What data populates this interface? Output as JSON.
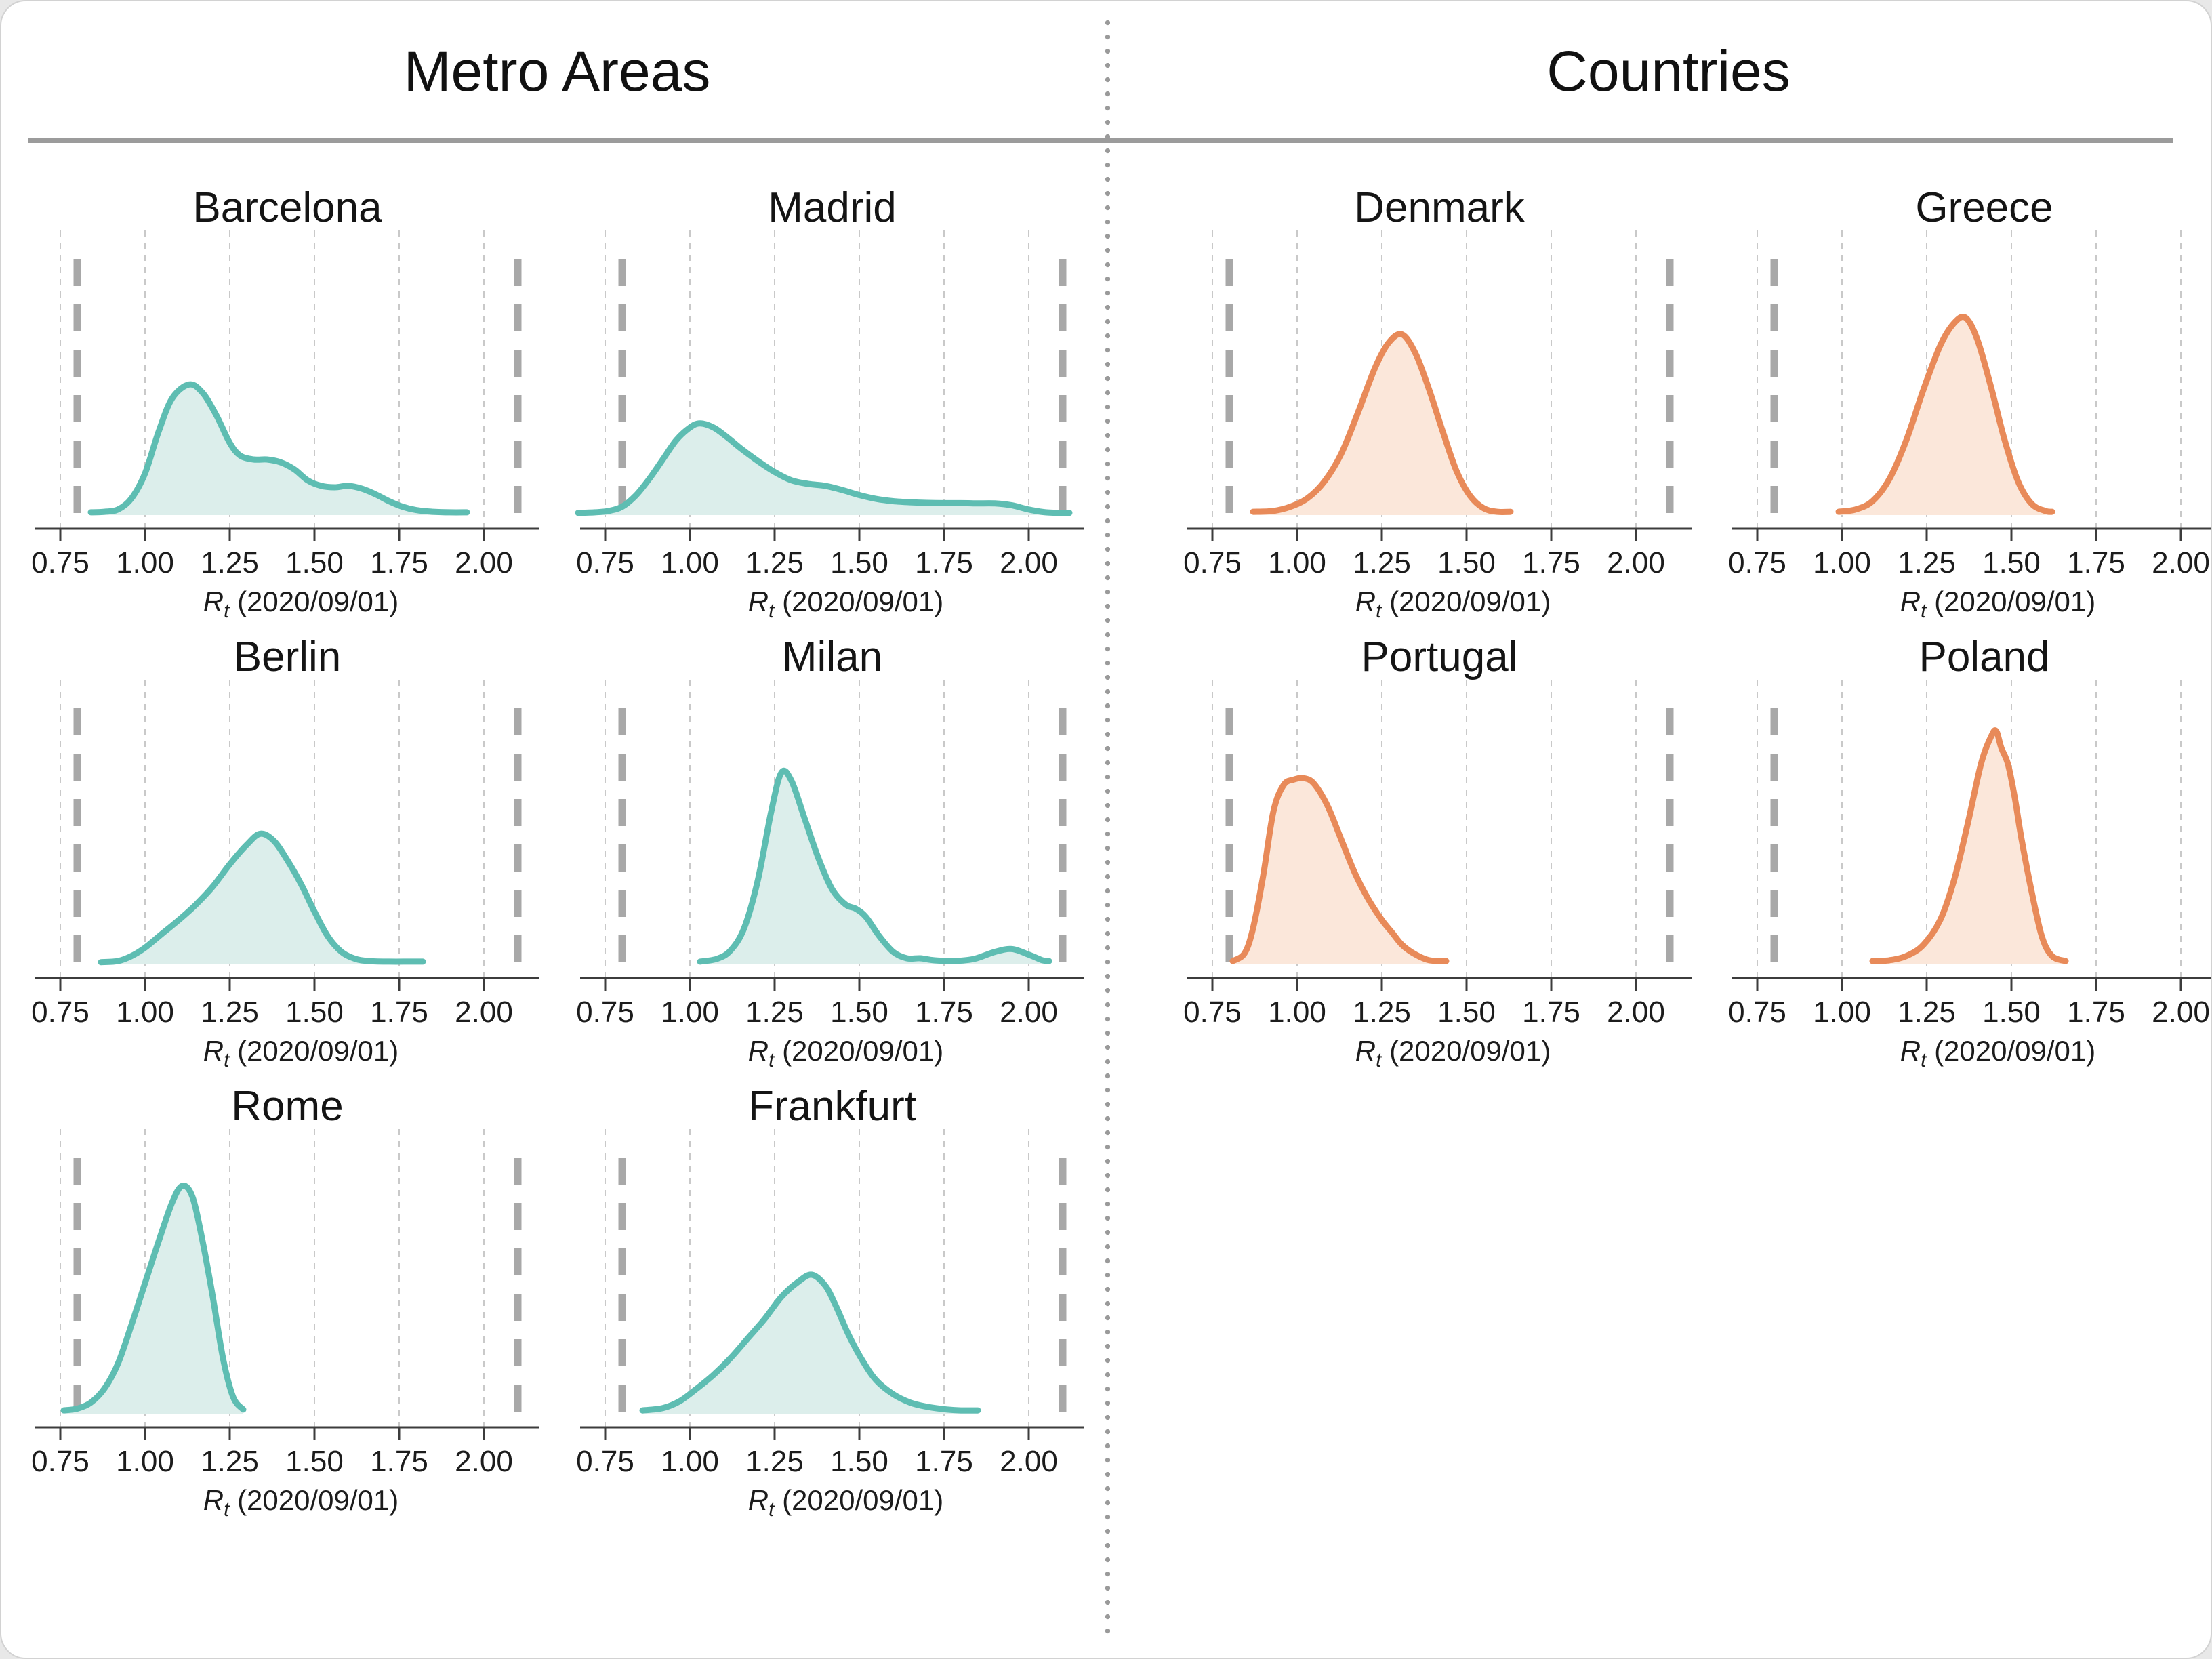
{
  "page": {
    "left_title": "Metro Areas",
    "right_title": "Countries"
  },
  "colors": {
    "metro_stroke": "#5EBDB2",
    "metro_fill": "#DCEEEB",
    "country_stroke": "#E88A59",
    "country_fill": "#FBE7DA",
    "gridline": "#C9C9C9",
    "bound_dash": "#A8A8A8",
    "axis_line": "#3C3C3C",
    "header_rule": "#9B9B9B",
    "text": "#1C1C1C"
  },
  "axis": {
    "xlabel_r": "R",
    "xlabel_sub": "t",
    "xlabel_rest": " (2020/09/01)",
    "tick_labels": [
      "0.75",
      "1.00",
      "1.25",
      "1.50",
      "1.75",
      "2.00"
    ],
    "tick_values": [
      0.75,
      1.0,
      1.25,
      1.5,
      1.75,
      2.0
    ],
    "dashed_bounds": [
      0.8,
      2.1
    ],
    "xlim": [
      0.72,
      2.14
    ]
  },
  "chart_data": [
    {
      "type": "area",
      "panel": "metro",
      "title": "Barcelona",
      "xlabel": "R_t (2020/09/01)",
      "xlim": [
        0.72,
        2.14
      ],
      "points": [
        [
          0.84,
          0.01
        ],
        [
          0.88,
          0.012
        ],
        [
          0.92,
          0.02
        ],
        [
          0.96,
          0.06
        ],
        [
          1.0,
          0.15
        ],
        [
          1.04,
          0.3
        ],
        [
          1.08,
          0.42
        ],
        [
          1.13,
          0.47
        ],
        [
          1.17,
          0.44
        ],
        [
          1.21,
          0.36
        ],
        [
          1.25,
          0.26
        ],
        [
          1.28,
          0.215
        ],
        [
          1.32,
          0.2
        ],
        [
          1.36,
          0.2
        ],
        [
          1.4,
          0.19
        ],
        [
          1.44,
          0.165
        ],
        [
          1.48,
          0.125
        ],
        [
          1.52,
          0.105
        ],
        [
          1.56,
          0.1
        ],
        [
          1.6,
          0.105
        ],
        [
          1.64,
          0.095
        ],
        [
          1.68,
          0.075
        ],
        [
          1.72,
          0.05
        ],
        [
          1.76,
          0.03
        ],
        [
          1.8,
          0.018
        ],
        [
          1.85,
          0.012
        ],
        [
          1.9,
          0.01
        ],
        [
          1.95,
          0.01
        ]
      ]
    },
    {
      "type": "area",
      "panel": "metro",
      "title": "Madrid",
      "xlabel": "R_t (2020/09/01)",
      "xlim": [
        0.72,
        2.14
      ],
      "points": [
        [
          0.67,
          0.008
        ],
        [
          0.72,
          0.01
        ],
        [
          0.76,
          0.015
        ],
        [
          0.8,
          0.03
        ],
        [
          0.84,
          0.07
        ],
        [
          0.88,
          0.13
        ],
        [
          0.92,
          0.2
        ],
        [
          0.96,
          0.27
        ],
        [
          1.0,
          0.315
        ],
        [
          1.03,
          0.33
        ],
        [
          1.07,
          0.315
        ],
        [
          1.11,
          0.28
        ],
        [
          1.15,
          0.24
        ],
        [
          1.2,
          0.195
        ],
        [
          1.25,
          0.155
        ],
        [
          1.3,
          0.125
        ],
        [
          1.35,
          0.112
        ],
        [
          1.4,
          0.105
        ],
        [
          1.45,
          0.09
        ],
        [
          1.5,
          0.072
        ],
        [
          1.55,
          0.058
        ],
        [
          1.6,
          0.05
        ],
        [
          1.65,
          0.046
        ],
        [
          1.7,
          0.044
        ],
        [
          1.75,
          0.043
        ],
        [
          1.8,
          0.043
        ],
        [
          1.85,
          0.042
        ],
        [
          1.9,
          0.042
        ],
        [
          1.95,
          0.035
        ],
        [
          2.0,
          0.02
        ],
        [
          2.05,
          0.01
        ],
        [
          2.1,
          0.008
        ],
        [
          2.12,
          0.008
        ]
      ]
    },
    {
      "type": "area",
      "panel": "metro",
      "title": "Berlin",
      "xlabel": "R_t (2020/09/01)",
      "xlim": [
        0.72,
        2.14
      ],
      "points": [
        [
          0.87,
          0.008
        ],
        [
          0.92,
          0.012
        ],
        [
          0.96,
          0.03
        ],
        [
          1.0,
          0.06
        ],
        [
          1.05,
          0.11
        ],
        [
          1.1,
          0.16
        ],
        [
          1.15,
          0.215
        ],
        [
          1.2,
          0.28
        ],
        [
          1.25,
          0.36
        ],
        [
          1.3,
          0.43
        ],
        [
          1.34,
          0.47
        ],
        [
          1.38,
          0.445
        ],
        [
          1.42,
          0.375
        ],
        [
          1.46,
          0.29
        ],
        [
          1.5,
          0.19
        ],
        [
          1.54,
          0.1
        ],
        [
          1.58,
          0.045
        ],
        [
          1.62,
          0.02
        ],
        [
          1.66,
          0.012
        ],
        [
          1.72,
          0.01
        ],
        [
          1.78,
          0.01
        ],
        [
          1.82,
          0.01
        ]
      ]
    },
    {
      "type": "area",
      "panel": "metro",
      "title": "Milan",
      "xlabel": "R_t (2020/09/01)",
      "xlim": [
        0.72,
        2.14
      ],
      "points": [
        [
          1.03,
          0.01
        ],
        [
          1.08,
          0.02
        ],
        [
          1.12,
          0.05
        ],
        [
          1.16,
          0.13
        ],
        [
          1.2,
          0.3
        ],
        [
          1.24,
          0.55
        ],
        [
          1.27,
          0.69
        ],
        [
          1.3,
          0.66
        ],
        [
          1.34,
          0.52
        ],
        [
          1.38,
          0.38
        ],
        [
          1.42,
          0.27
        ],
        [
          1.46,
          0.215
        ],
        [
          1.49,
          0.2
        ],
        [
          1.52,
          0.17
        ],
        [
          1.56,
          0.1
        ],
        [
          1.6,
          0.045
        ],
        [
          1.64,
          0.022
        ],
        [
          1.68,
          0.022
        ],
        [
          1.72,
          0.015
        ],
        [
          1.78,
          0.012
        ],
        [
          1.84,
          0.02
        ],
        [
          1.9,
          0.045
        ],
        [
          1.95,
          0.055
        ],
        [
          2.0,
          0.035
        ],
        [
          2.04,
          0.015
        ],
        [
          2.06,
          0.012
        ]
      ]
    },
    {
      "type": "area",
      "panel": "metro",
      "title": "Rome",
      "xlabel": "R_t (2020/09/01)",
      "xlim": [
        0.72,
        2.14
      ],
      "points": [
        [
          0.76,
          0.012
        ],
        [
          0.8,
          0.018
        ],
        [
          0.84,
          0.04
        ],
        [
          0.88,
          0.09
        ],
        [
          0.92,
          0.18
        ],
        [
          0.96,
          0.32
        ],
        [
          1.0,
          0.47
        ],
        [
          1.04,
          0.62
        ],
        [
          1.08,
          0.76
        ],
        [
          1.11,
          0.82
        ],
        [
          1.14,
          0.78
        ],
        [
          1.17,
          0.62
        ],
        [
          1.2,
          0.42
        ],
        [
          1.23,
          0.2
        ],
        [
          1.26,
          0.06
        ],
        [
          1.29,
          0.015
        ]
      ]
    },
    {
      "type": "area",
      "panel": "metro",
      "title": "Frankfurt",
      "xlabel": "R_t (2020/09/01)",
      "xlim": [
        0.72,
        2.14
      ],
      "points": [
        [
          0.86,
          0.012
        ],
        [
          0.92,
          0.02
        ],
        [
          0.97,
          0.045
        ],
        [
          1.02,
          0.09
        ],
        [
          1.07,
          0.14
        ],
        [
          1.12,
          0.2
        ],
        [
          1.17,
          0.27
        ],
        [
          1.22,
          0.34
        ],
        [
          1.27,
          0.42
        ],
        [
          1.32,
          0.475
        ],
        [
          1.36,
          0.5
        ],
        [
          1.4,
          0.46
        ],
        [
          1.43,
          0.39
        ],
        [
          1.47,
          0.28
        ],
        [
          1.51,
          0.19
        ],
        [
          1.55,
          0.12
        ],
        [
          1.6,
          0.07
        ],
        [
          1.65,
          0.04
        ],
        [
          1.7,
          0.025
        ],
        [
          1.76,
          0.015
        ],
        [
          1.8,
          0.012
        ],
        [
          1.85,
          0.012
        ]
      ]
    },
    {
      "type": "area",
      "panel": "countries",
      "title": "Denmark",
      "xlabel": "R_t (2020/09/01)",
      "xlim": [
        0.72,
        2.14
      ],
      "points": [
        [
          0.87,
          0.012
        ],
        [
          0.93,
          0.015
        ],
        [
          0.98,
          0.03
        ],
        [
          1.03,
          0.06
        ],
        [
          1.08,
          0.12
        ],
        [
          1.13,
          0.22
        ],
        [
          1.18,
          0.37
        ],
        [
          1.23,
          0.53
        ],
        [
          1.27,
          0.62
        ],
        [
          1.31,
          0.65
        ],
        [
          1.35,
          0.58
        ],
        [
          1.39,
          0.45
        ],
        [
          1.43,
          0.3
        ],
        [
          1.47,
          0.16
        ],
        [
          1.51,
          0.07
        ],
        [
          1.55,
          0.025
        ],
        [
          1.59,
          0.012
        ],
        [
          1.63,
          0.012
        ]
      ]
    },
    {
      "type": "area",
      "panel": "countries",
      "title": "Greece",
      "xlabel": "R_t (2020/09/01)",
      "xlim": [
        0.72,
        2.14
      ],
      "points": [
        [
          0.99,
          0.012
        ],
        [
          1.04,
          0.02
        ],
        [
          1.09,
          0.05
        ],
        [
          1.14,
          0.13
        ],
        [
          1.19,
          0.27
        ],
        [
          1.24,
          0.45
        ],
        [
          1.29,
          0.61
        ],
        [
          1.33,
          0.69
        ],
        [
          1.365,
          0.71
        ],
        [
          1.4,
          0.63
        ],
        [
          1.44,
          0.46
        ],
        [
          1.48,
          0.27
        ],
        [
          1.52,
          0.12
        ],
        [
          1.56,
          0.04
        ],
        [
          1.6,
          0.015
        ],
        [
          1.62,
          0.012
        ]
      ]
    },
    {
      "type": "area",
      "panel": "countries",
      "title": "Portugal",
      "xlabel": "R_t (2020/09/01)",
      "xlim": [
        0.72,
        2.14
      ],
      "points": [
        [
          0.81,
          0.012
        ],
        [
          0.845,
          0.04
        ],
        [
          0.87,
          0.13
        ],
        [
          0.9,
          0.32
        ],
        [
          0.93,
          0.55
        ],
        [
          0.96,
          0.645
        ],
        [
          0.99,
          0.665
        ],
        [
          1.02,
          0.67
        ],
        [
          1.05,
          0.65
        ],
        [
          1.09,
          0.57
        ],
        [
          1.13,
          0.45
        ],
        [
          1.17,
          0.33
        ],
        [
          1.21,
          0.235
        ],
        [
          1.25,
          0.16
        ],
        [
          1.28,
          0.115
        ],
        [
          1.31,
          0.07
        ],
        [
          1.35,
          0.035
        ],
        [
          1.39,
          0.015
        ],
        [
          1.44,
          0.012
        ]
      ]
    },
    {
      "type": "area",
      "panel": "countries",
      "title": "Poland",
      "xlabel": "R_t (2020/09/01)",
      "xlim": [
        0.72,
        2.14
      ],
      "points": [
        [
          1.09,
          0.012
        ],
        [
          1.14,
          0.015
        ],
        [
          1.19,
          0.03
        ],
        [
          1.24,
          0.07
        ],
        [
          1.29,
          0.16
        ],
        [
          1.33,
          0.3
        ],
        [
          1.37,
          0.5
        ],
        [
          1.41,
          0.72
        ],
        [
          1.44,
          0.82
        ],
        [
          1.455,
          0.84
        ],
        [
          1.47,
          0.78
        ],
        [
          1.49,
          0.72
        ],
        [
          1.51,
          0.6
        ],
        [
          1.53,
          0.45
        ],
        [
          1.56,
          0.26
        ],
        [
          1.59,
          0.1
        ],
        [
          1.62,
          0.03
        ],
        [
          1.66,
          0.012
        ]
      ]
    }
  ]
}
